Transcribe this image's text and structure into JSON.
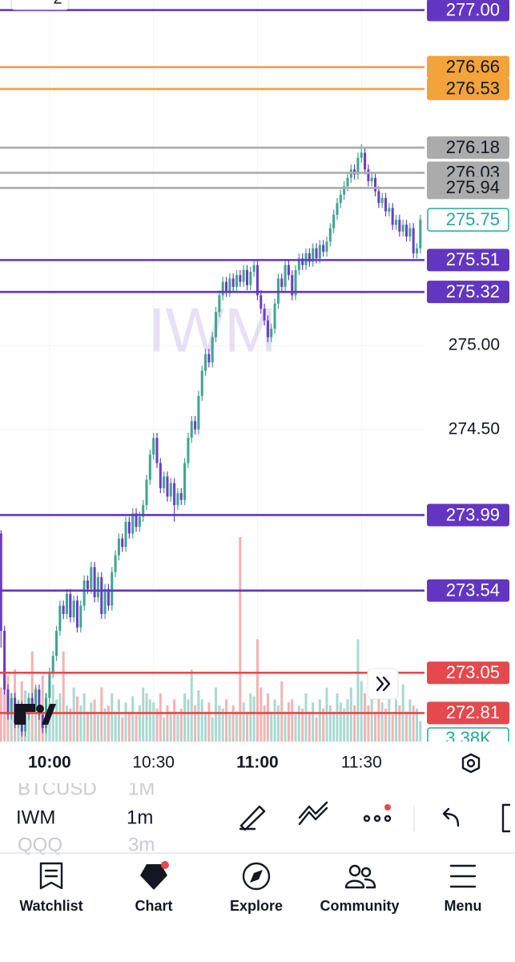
{
  "top_badge": "2",
  "chart_data": {
    "type": "candlestick",
    "watermark": "IWM",
    "up_color": "#3fa58f",
    "down_color": "#6a3ec4",
    "up_volume_color": "#a9d9d0",
    "down_volume_color": "#f2b3b3",
    "grid": true,
    "xlim": [
      585.7,
      708.2
    ],
    "ylim": [
      272.64,
      277.06
    ],
    "vlim": [
      0,
      40000
    ],
    "xticks": [
      {
        "value": 600,
        "label": "10:00"
      },
      {
        "value": 630,
        "label": "10:30"
      },
      {
        "value": 660,
        "label": "11:00"
      },
      {
        "value": 690,
        "label": "11:30"
      }
    ],
    "yticks": [
      {
        "value": 275,
        "label": "275.00"
      },
      {
        "value": 274.5,
        "label": "274.50"
      }
    ],
    "levels": [
      {
        "value": 277,
        "label": "277.00",
        "color": "#6236c1",
        "text_color": "#ffffff"
      },
      {
        "value": 276.66,
        "label": "276.66",
        "color": "#f2a33a",
        "text_color": "#131722"
      },
      {
        "value": 276.53,
        "label": "276.53",
        "color": "#f2a33a",
        "text_color": "#131722"
      },
      {
        "value": 276.18,
        "label": "276.18",
        "color": "#ababab",
        "text_color": "#131722"
      },
      {
        "value": 276.03,
        "label": "276.03",
        "color": "#ababab",
        "text_color": "#131722"
      },
      {
        "value": 275.94,
        "label": "275.94",
        "color": "#ababab",
        "text_color": "#131722"
      },
      {
        "value": 275.51,
        "label": "275.51",
        "color": "#6236c1",
        "text_color": "#ffffff"
      },
      {
        "value": 275.32,
        "label": "275.32",
        "color": "#6236c1",
        "text_color": "#ffffff"
      },
      {
        "value": 273.99,
        "label": "273.99",
        "color": "#6236c1",
        "text_color": "#ffffff"
      },
      {
        "value": 273.54,
        "label": "273.54",
        "color": "#6236c1",
        "text_color": "#ffffff"
      },
      {
        "value": 273.05,
        "label": "273.05",
        "color": "#e5484d",
        "text_color": "#ffffff"
      },
      {
        "value": 272.81,
        "label": "272.81",
        "color": "#e5484d",
        "text_color": "#ffffff"
      }
    ],
    "last_price": {
      "value": 275.75,
      "label": "275.75",
      "color": "#26a69a"
    },
    "volume_label": {
      "value": 3380,
      "label": "3.38K",
      "color": "#26a69a"
    },
    "x": [
      586,
      587,
      588,
      589,
      590,
      591,
      592,
      593,
      594,
      595,
      596,
      597,
      598,
      599,
      600,
      601,
      602,
      603,
      604,
      605,
      606,
      607,
      608,
      609,
      610,
      611,
      612,
      613,
      614,
      615,
      616,
      617,
      618,
      619,
      620,
      621,
      622,
      623,
      624,
      625,
      626,
      627,
      628,
      629,
      630,
      631,
      632,
      633,
      634,
      635,
      636,
      637,
      638,
      639,
      640,
      641,
      642,
      643,
      644,
      645,
      646,
      647,
      648,
      649,
      650,
      651,
      652,
      653,
      654,
      655,
      656,
      657,
      658,
      659,
      660,
      661,
      662,
      663,
      664,
      665,
      666,
      667,
      668,
      669,
      670,
      671,
      672,
      673,
      674,
      675,
      676,
      677,
      678,
      679,
      680,
      681,
      682,
      683,
      684,
      685,
      686,
      687,
      688,
      689,
      690,
      691,
      692,
      693,
      694,
      695,
      696,
      697,
      698,
      699,
      700,
      701,
      702,
      703,
      704,
      705,
      706,
      707
    ],
    "candles": [
      [
        273.88,
        273.9,
        273.2,
        273.3
      ],
      [
        273.3,
        273.33,
        272.92,
        272.95
      ],
      [
        272.95,
        272.98,
        272.77,
        272.8
      ],
      [
        272.8,
        272.93,
        272.77,
        272.9
      ],
      [
        272.9,
        272.93,
        272.72,
        272.75
      ],
      [
        272.75,
        272.88,
        272.72,
        272.85
      ],
      [
        272.85,
        272.88,
        272.67,
        272.7
      ],
      [
        272.7,
        272.83,
        272.67,
        272.8
      ],
      [
        272.8,
        272.93,
        272.77,
        272.9
      ],
      [
        272.9,
        272.93,
        272.82,
        272.85
      ],
      [
        272.85,
        272.98,
        272.82,
        272.95
      ],
      [
        272.95,
        272.98,
        272.77,
        272.8
      ],
      [
        272.8,
        272.83,
        272.69,
        272.72
      ],
      [
        272.72,
        272.93,
        272.69,
        272.9
      ],
      [
        272.9,
        273.08,
        272.87,
        273.05
      ],
      [
        273.05,
        273.18,
        273.02,
        273.15
      ],
      [
        273.15,
        273.33,
        273.12,
        273.3
      ],
      [
        273.3,
        273.48,
        273.27,
        273.45
      ],
      [
        273.45,
        273.48,
        273.37,
        273.4
      ],
      [
        273.4,
        273.55,
        273.37,
        273.52
      ],
      [
        273.52,
        273.55,
        273.35,
        273.38
      ],
      [
        273.38,
        273.51,
        273.35,
        273.48
      ],
      [
        273.48,
        273.51,
        273.29,
        273.32
      ],
      [
        273.32,
        273.48,
        273.29,
        273.45
      ],
      [
        273.45,
        273.63,
        273.42,
        273.6
      ],
      [
        273.6,
        273.63,
        273.52,
        273.55
      ],
      [
        273.55,
        273.71,
        273.52,
        273.68
      ],
      [
        273.68,
        273.71,
        273.47,
        273.5
      ],
      [
        273.5,
        273.65,
        273.47,
        273.62
      ],
      [
        273.62,
        273.65,
        273.37,
        273.4
      ],
      [
        273.4,
        273.58,
        273.37,
        273.55
      ],
      [
        273.55,
        273.58,
        273.42,
        273.45
      ],
      [
        273.45,
        273.68,
        273.42,
        273.65
      ],
      [
        273.65,
        273.78,
        273.62,
        273.75
      ],
      [
        273.75,
        273.88,
        273.72,
        273.85
      ],
      [
        273.85,
        273.88,
        273.77,
        273.8
      ],
      [
        273.8,
        273.98,
        273.77,
        273.95
      ],
      [
        273.95,
        273.98,
        273.85,
        273.88
      ],
      [
        273.88,
        274.03,
        273.85,
        274
      ],
      [
        274,
        274.03,
        273.89,
        273.92
      ],
      [
        273.92,
        274.01,
        273.89,
        273.98
      ],
      [
        273.98,
        274.08,
        273.95,
        274.05
      ],
      [
        274.05,
        274.23,
        274.02,
        274.2
      ],
      [
        274.2,
        274.38,
        274.17,
        274.35
      ],
      [
        274.35,
        274.48,
        274.32,
        274.45
      ],
      [
        274.45,
        274.48,
        274.27,
        274.3
      ],
      [
        274.3,
        274.33,
        274.12,
        274.15
      ],
      [
        274.15,
        274.25,
        274.12,
        274.22
      ],
      [
        274.22,
        274.25,
        274.07,
        274.1
      ],
      [
        274.1,
        274.21,
        274.07,
        274.18
      ],
      [
        274.18,
        274.21,
        273.95,
        274.05
      ],
      [
        274.05,
        274.15,
        274.02,
        274.12
      ],
      [
        274.12,
        274.15,
        274.05,
        274.08
      ],
      [
        274.08,
        274.33,
        274.05,
        274.3
      ],
      [
        274.3,
        274.48,
        274.27,
        274.45
      ],
      [
        274.45,
        274.58,
        274.42,
        274.55
      ],
      [
        274.55,
        274.58,
        274.47,
        274.5
      ],
      [
        274.5,
        274.73,
        274.47,
        274.7
      ],
      [
        274.7,
        274.88,
        274.67,
        274.85
      ],
      [
        274.85,
        274.98,
        274.82,
        274.95
      ],
      [
        274.95,
        274.98,
        274.87,
        274.9
      ],
      [
        274.9,
        275.08,
        274.87,
        275.05
      ],
      [
        275.05,
        275.23,
        275.02,
        275.2
      ],
      [
        275.2,
        275.33,
        275.17,
        275.3
      ],
      [
        275.3,
        275.41,
        275.27,
        275.38
      ],
      [
        275.38,
        275.41,
        275.29,
        275.32
      ],
      [
        275.32,
        275.43,
        275.29,
        275.4
      ],
      [
        275.4,
        275.43,
        275.32,
        275.35
      ],
      [
        275.35,
        275.45,
        275.32,
        275.42
      ],
      [
        275.42,
        275.45,
        275.35,
        275.38
      ],
      [
        275.38,
        275.48,
        275.35,
        275.45
      ],
      [
        275.45,
        275.48,
        275.33,
        275.36
      ],
      [
        275.36,
        275.47,
        275.33,
        275.44
      ],
      [
        275.44,
        275.51,
        275.41,
        275.48
      ],
      [
        275.48,
        275.51,
        275.27,
        275.3
      ],
      [
        275.3,
        275.33,
        275.19,
        275.22
      ],
      [
        275.22,
        275.25,
        275.12,
        275.15
      ],
      [
        275.15,
        275.18,
        275.02,
        275.05
      ],
      [
        275.05,
        275.13,
        275.02,
        275.1
      ],
      [
        275.1,
        275.28,
        275.07,
        275.25
      ],
      [
        275.25,
        275.43,
        275.22,
        275.4
      ],
      [
        275.4,
        275.43,
        275.32,
        275.35
      ],
      [
        275.35,
        275.51,
        275.32,
        275.48
      ],
      [
        275.48,
        275.51,
        275.39,
        275.42
      ],
      [
        275.42,
        275.45,
        275.27,
        275.3
      ],
      [
        275.3,
        275.48,
        275.27,
        275.45
      ],
      [
        275.45,
        275.55,
        275.42,
        275.52
      ],
      [
        275.52,
        275.55,
        275.45,
        275.48
      ],
      [
        275.48,
        275.58,
        275.45,
        275.55
      ],
      [
        275.55,
        275.58,
        275.47,
        275.5
      ],
      [
        275.5,
        275.61,
        275.47,
        275.58
      ],
      [
        275.58,
        275.61,
        275.49,
        275.52
      ],
      [
        275.52,
        275.63,
        275.49,
        275.6
      ],
      [
        275.6,
        275.63,
        275.53,
        275.56
      ],
      [
        275.56,
        275.65,
        275.53,
        275.62
      ],
      [
        275.62,
        275.73,
        275.59,
        275.7
      ],
      [
        275.7,
        275.81,
        275.67,
        275.78
      ],
      [
        275.78,
        275.88,
        275.75,
        275.85
      ],
      [
        275.85,
        275.93,
        275.82,
        275.9
      ],
      [
        275.9,
        275.98,
        275.87,
        275.95
      ],
      [
        275.95,
        276.03,
        275.92,
        276
      ],
      [
        276,
        276.08,
        275.97,
        276.05
      ],
      [
        276.05,
        276.08,
        275.99,
        276.02
      ],
      [
        276.02,
        276.15,
        275.99,
        276.12
      ],
      [
        276.12,
        276.2,
        276.09,
        276.15
      ],
      [
        276.15,
        276.18,
        276.02,
        276.05
      ],
      [
        276.05,
        276.08,
        275.95,
        275.98
      ],
      [
        275.98,
        276.03,
        275.95,
        276
      ],
      [
        276,
        276.03,
        275.89,
        275.92
      ],
      [
        275.92,
        275.95,
        275.82,
        275.85
      ],
      [
        275.85,
        275.91,
        275.82,
        275.88
      ],
      [
        275.88,
        275.91,
        275.77,
        275.8
      ],
      [
        275.8,
        275.85,
        275.77,
        275.82
      ],
      [
        275.82,
        275.85,
        275.69,
        275.72
      ],
      [
        275.72,
        275.78,
        275.69,
        275.75
      ],
      [
        275.75,
        275.78,
        275.65,
        275.68
      ],
      [
        275.68,
        275.75,
        275.65,
        275.72
      ],
      [
        275.72,
        275.75,
        275.62,
        275.65
      ],
      [
        275.65,
        275.73,
        275.62,
        275.7
      ],
      [
        275.7,
        275.73,
        275.52,
        275.55
      ],
      [
        275.55,
        275.61,
        275.52,
        275.58
      ],
      [
        275.58,
        275.78,
        275.55,
        275.75
      ]
    ],
    "volume": [
      9000,
      14000,
      11000,
      8000,
      12000,
      7000,
      10000,
      8500,
      6000,
      15000,
      9000,
      7000,
      11000,
      8000,
      6500,
      9500,
      7000,
      8000,
      15000,
      6000,
      5500,
      9000,
      7500,
      6000,
      8000,
      5000,
      6500,
      7000,
      4500,
      9000,
      5500,
      6000,
      8000,
      5000,
      7000,
      4000,
      6500,
      5000,
      7500,
      4500,
      6000,
      9000,
      8000,
      7000,
      6500,
      5500,
      8000,
      4000,
      6000,
      5000,
      7000,
      4500,
      5500,
      8000,
      7000,
      12000,
      6000,
      8500,
      7000,
      5000,
      6500,
      4000,
      9000,
      6000,
      5500,
      7000,
      4500,
      6000,
      5000,
      34000,
      6500,
      5000,
      8000,
      7500,
      17000,
      9000,
      6000,
      8000,
      5000,
      7000,
      6000,
      10000,
      5000,
      6500,
      7000,
      4500,
      6000,
      5500,
      8000,
      5000,
      6500,
      4000,
      7000,
      5500,
      9000,
      6000,
      5000,
      8000,
      6500,
      5500,
      7000,
      9000,
      6000,
      17000,
      10000,
      8000,
      6000,
      7500,
      5000,
      9000,
      6500,
      5500,
      8000,
      4500,
      7000,
      6000,
      9500,
      5000,
      7000,
      6000,
      5500,
      3380
    ]
  },
  "toolbar": {
    "rows": [
      [
        "BTCUSD",
        "1M"
      ],
      [
        "IWM",
        "1m"
      ],
      [
        "QQQ",
        "3m"
      ]
    ]
  },
  "nav": [
    "Watchlist",
    "Chart",
    "Explore",
    "Community",
    "Menu"
  ]
}
